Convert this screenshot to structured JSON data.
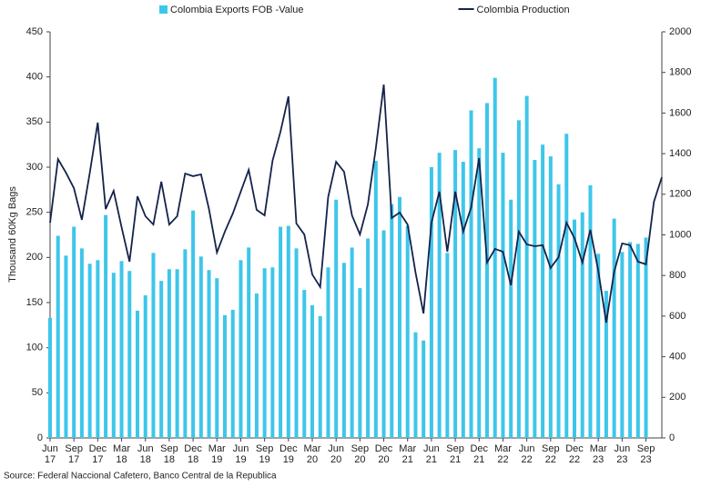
{
  "chart_data": {
    "type": "bar_line",
    "y_label": "Thousand 60Kg Bags",
    "source": "Source: Federal Naccional Cafetero, Banco Central de la Republica",
    "categories": [
      "Jun\n17",
      null,
      null,
      "Sep\n17",
      null,
      null,
      "Dec\n17",
      null,
      null,
      "Mar\n18",
      null,
      null,
      "Jun\n18",
      null,
      null,
      "Sep\n18",
      null,
      null,
      "Dec\n18",
      null,
      null,
      "Mar\n19",
      null,
      null,
      "Jun\n19",
      null,
      null,
      "Sep\n19",
      null,
      null,
      "Dec\n19",
      null,
      null,
      "Mar\n20",
      null,
      null,
      "Jun\n20",
      null,
      null,
      "Sep\n20",
      null,
      null,
      "Dec\n20",
      null,
      null,
      "Mar\n21",
      null,
      null,
      "Jun\n21",
      null,
      null,
      "Sep\n21",
      null,
      null,
      "Dec\n21",
      null,
      null,
      "Mar\n22",
      null,
      null,
      "Jun\n22",
      null,
      null,
      "Sep\n22",
      null,
      null,
      "Dec\n22",
      null,
      null,
      "Mar\n23",
      null,
      null,
      "Jun\n23",
      null,
      null,
      "Sep\n23",
      null,
      null
    ],
    "series": [
      {
        "name": "Colombia Exports FOB -Value",
        "color": "#3ec6ea",
        "kind": "bar",
        "values": [
          133,
          224,
          202,
          234,
          210,
          193,
          197,
          247,
          183,
          196,
          185,
          141,
          158,
          205,
          174,
          187,
          187,
          209,
          252,
          201,
          186,
          177,
          136,
          142,
          197,
          211,
          160,
          188,
          189,
          234,
          235,
          210,
          164,
          147,
          135,
          189,
          264,
          194,
          211,
          166,
          221,
          307,
          230,
          259,
          267,
          235,
          117,
          108,
          300,
          316,
          205,
          319,
          306,
          363,
          321,
          371,
          399,
          316,
          264,
          352,
          379,
          308,
          325,
          312,
          281,
          337,
          242,
          250,
          280,
          204,
          163,
          243,
          206,
          217,
          215,
          222,
          null,
          null
        ]
      },
      {
        "name": "Colombia Production",
        "color": "#14234b",
        "kind": "line",
        "axis": "y2",
        "values": [
          1060,
          1373,
          1306,
          1230,
          1074,
          1306,
          1553,
          1127,
          1217,
          1038,
          868,
          1190,
          1092,
          1051,
          1262,
          1051,
          1092,
          1302,
          1289,
          1298,
          1127,
          913,
          1016,
          1105,
          1213,
          1320,
          1123,
          1096,
          1365,
          1508,
          1682,
          1056,
          1002,
          805,
          743,
          1186,
          1360,
          1311,
          1096,
          1002,
          1150,
          1427,
          1740,
          1083,
          1110,
          1051,
          814,
          613,
          1060,
          1213,
          917,
          1213,
          1016,
          1136,
          1378,
          864,
          931,
          917,
          752,
          1016,
          953,
          944,
          949,
          837,
          890,
          1060,
          984,
          864,
          1025,
          823,
          568,
          819,
          958,
          949,
          868,
          855,
          1163,
          1284
        ]
      }
    ],
    "ylim": [
      0,
      450
    ],
    "yticks": [
      0,
      50,
      100,
      150,
      200,
      250,
      300,
      350,
      400,
      450
    ],
    "y2lim": [
      0,
      2000
    ],
    "y2ticks": [
      0,
      200,
      400,
      600,
      800,
      1000,
      1200,
      1400,
      1600,
      1800,
      2000
    ],
    "legend": "top"
  }
}
